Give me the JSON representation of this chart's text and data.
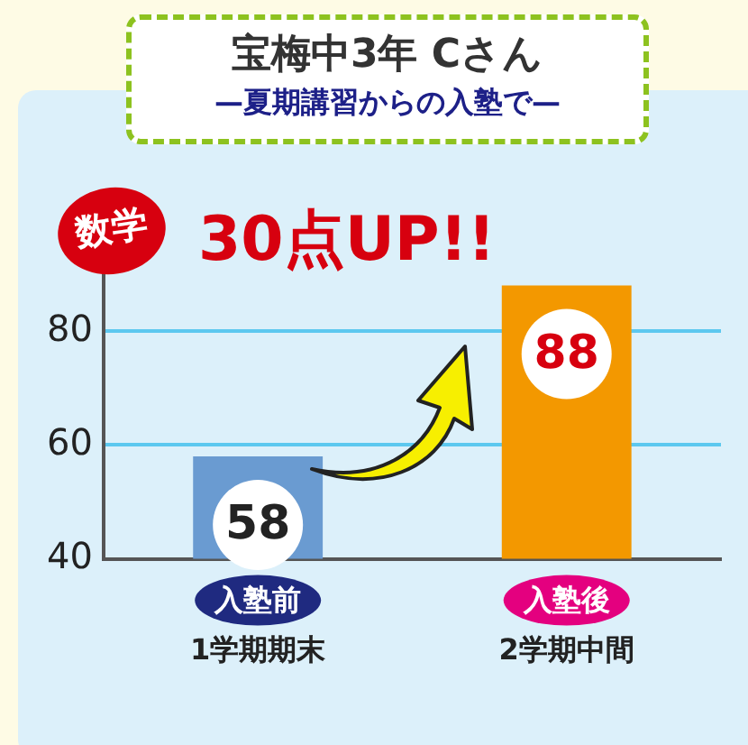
{
  "chart_data": {
    "type": "bar",
    "title": "宝梅中3年 Cさん",
    "subtitle": "—夏期講習からの入塾で—",
    "categories": [
      "1学期期末",
      "2学期中間"
    ],
    "values": [
      58,
      88
    ],
    "colors": [
      "#6a9bd1",
      "#f39800"
    ],
    "ylim": [
      40,
      90
    ],
    "yticks": [
      40,
      60,
      80
    ],
    "grid": "y",
    "data_labels": true,
    "annotations": [
      "数学",
      "30点UP!!",
      "入塾前",
      "入塾後"
    ]
  }
}
